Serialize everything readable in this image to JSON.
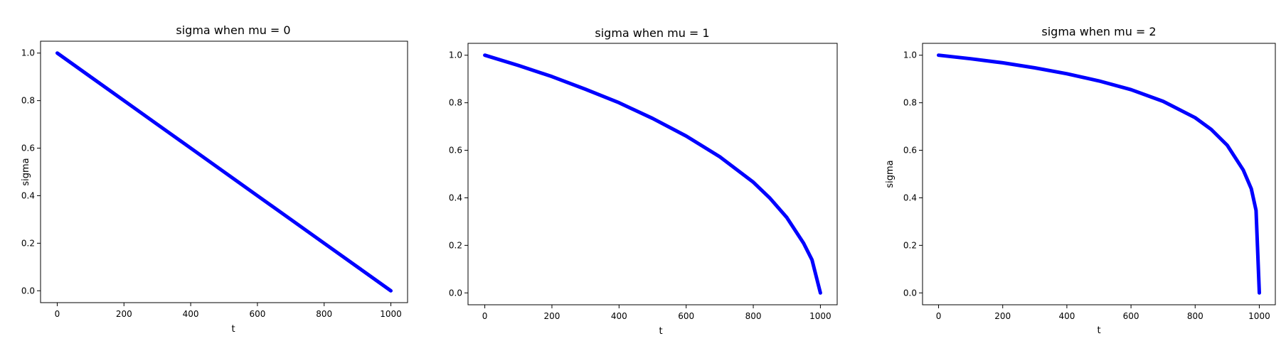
{
  "colors": {
    "series": "#0000ff",
    "axes": "#000000",
    "background": "#ffffff"
  },
  "chart_data": [
    {
      "type": "scatter",
      "title": "sigma when mu = 0",
      "xlabel": "t",
      "ylabel": "sigma",
      "xlim": [
        -50,
        1050
      ],
      "ylim": [
        -0.05,
        1.05
      ],
      "xticks": [
        0,
        200,
        400,
        600,
        800,
        1000
      ],
      "yticks": [
        0.0,
        0.2,
        0.4,
        0.6,
        0.8,
        1.0
      ],
      "grid": false,
      "series": [
        {
          "x": [
            0,
            100,
            200,
            300,
            400,
            500,
            600,
            700,
            800,
            900,
            1000
          ],
          "y": [
            1.0,
            0.9,
            0.8,
            0.7,
            0.6,
            0.5,
            0.4,
            0.3,
            0.2,
            0.1,
            0.0
          ]
        }
      ]
    },
    {
      "type": "scatter",
      "title": "sigma when mu = 1",
      "xlabel": "t",
      "ylabel": "",
      "xlim": [
        -50,
        1050
      ],
      "ylim": [
        -0.05,
        1.05
      ],
      "xticks": [
        0,
        200,
        400,
        600,
        800,
        1000
      ],
      "yticks": [
        0.0,
        0.2,
        0.4,
        0.6,
        0.8,
        1.0
      ],
      "grid": false,
      "series": [
        {
          "x": [
            0,
            100,
            200,
            300,
            400,
            500,
            600,
            700,
            800,
            850,
            900,
            950,
            975,
            1000
          ],
          "y": [
            1.0,
            0.957,
            0.91,
            0.857,
            0.8,
            0.734,
            0.66,
            0.573,
            0.466,
            0.398,
            0.317,
            0.209,
            0.139,
            0.0
          ]
        }
      ]
    },
    {
      "type": "scatter",
      "title": "sigma when mu = 2",
      "xlabel": "t",
      "ylabel": "sigma",
      "xlim": [
        -50,
        1050
      ],
      "ylim": [
        -0.05,
        1.05
      ],
      "xticks": [
        0,
        200,
        400,
        600,
        800,
        1000
      ],
      "yticks": [
        0.0,
        0.2,
        0.4,
        0.6,
        0.8,
        1.0
      ],
      "grid": false,
      "series": [
        {
          "x": [
            0,
            100,
            200,
            300,
            400,
            500,
            600,
            700,
            800,
            850,
            900,
            950,
            975,
            990,
            1000
          ],
          "y": [
            1.0,
            0.985,
            0.968,
            0.947,
            0.922,
            0.892,
            0.855,
            0.806,
            0.737,
            0.688,
            0.621,
            0.517,
            0.438,
            0.347,
            0.0
          ]
        }
      ]
    }
  ]
}
